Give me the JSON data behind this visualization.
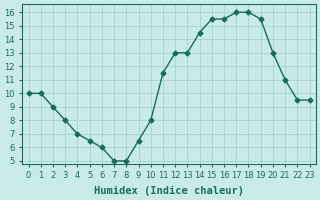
{
  "xlabel": "Humidex (Indice chaleur)",
  "ylabel": "",
  "x": [
    0,
    1,
    2,
    3,
    4,
    5,
    6,
    7,
    8,
    9,
    10,
    11,
    12,
    13,
    14,
    15,
    16,
    17,
    18,
    19,
    20,
    21,
    22,
    23
  ],
  "y": [
    10,
    10,
    9,
    8,
    7,
    6.5,
    6,
    5,
    5,
    6.5,
    8,
    11.5,
    13,
    13,
    14.5,
    15.5,
    15.5,
    16,
    16,
    15.5,
    13,
    11,
    9.5,
    9.5
  ],
  "line_color": "#1a6b5a",
  "marker": "D",
  "marker_size": 2.5,
  "bg_color": "#c8eaea",
  "grid_color": "#a0cccc",
  "xlim": [
    -0.5,
    23.5
  ],
  "ylim": [
    4.8,
    16.6
  ],
  "yticks": [
    5,
    6,
    7,
    8,
    9,
    10,
    11,
    12,
    13,
    14,
    15,
    16
  ],
  "xticks": [
    0,
    1,
    2,
    3,
    4,
    5,
    6,
    7,
    8,
    9,
    10,
    11,
    12,
    13,
    14,
    15,
    16,
    17,
    18,
    19,
    20,
    21,
    22,
    23
  ],
  "xtick_labels": [
    "0",
    "1",
    "2",
    "3",
    "4",
    "5",
    "6",
    "7",
    "8",
    "9",
    "10",
    "11",
    "12",
    "13",
    "14",
    "15",
    "16",
    "17",
    "18",
    "19",
    "20",
    "21",
    "22",
    "23"
  ],
  "xlabel_fontsize": 7.5,
  "tick_fontsize": 6,
  "axis_color": "#1a6b5a"
}
